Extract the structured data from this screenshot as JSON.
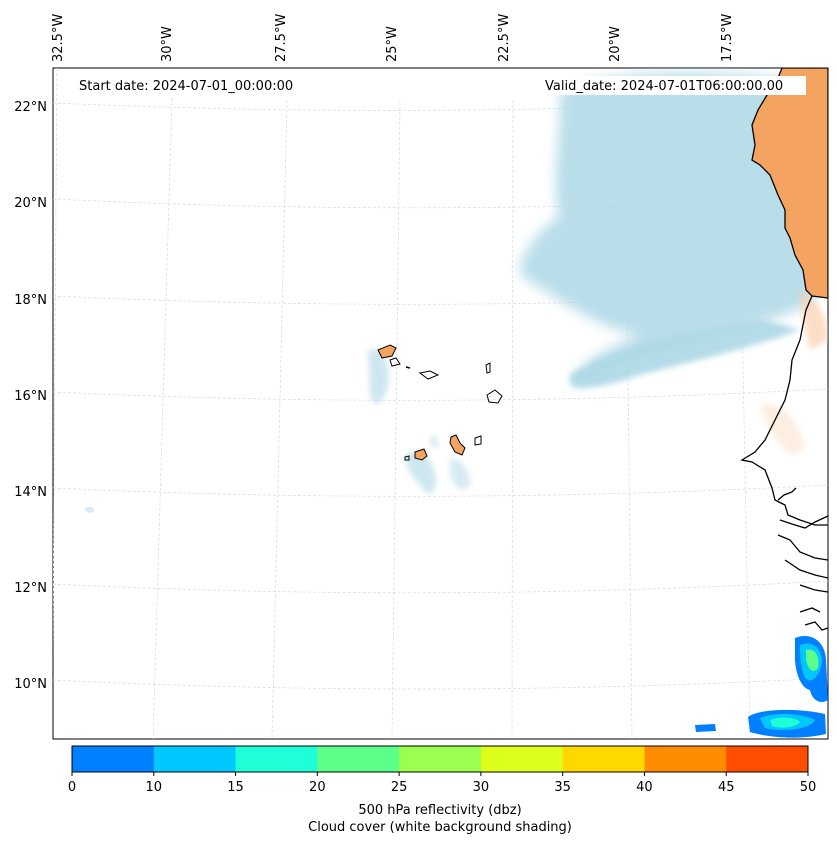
{
  "map": {
    "start_date": "Start date: 2024-07-01_00:00:00",
    "valid_date": "Valid_date: 2024-07-01T06:00:00.00",
    "lon_labels": [
      "32.5°W",
      "30°W",
      "27.5°W",
      "25°W",
      "22.5°W",
      "20°W",
      "17.5°W"
    ],
    "lat_labels": [
      "22°N",
      "20°N",
      "18°N",
      "16°N",
      "14°N",
      "12°N",
      "10°N"
    ],
    "land_color": "#f4a460",
    "cloud_color": "#add8e6",
    "gridlines": true
  },
  "colorbar": {
    "label": "500 hPa reflectivity (dbz)",
    "sublabel": "Cloud cover (white background shading)",
    "ticks": [
      "0",
      "10",
      "15",
      "20",
      "25",
      "30",
      "35",
      "40",
      "45",
      "50"
    ],
    "colors": [
      "#0080ff",
      "#00c8ff",
      "#1effd8",
      "#5cff8a",
      "#9aff50",
      "#dcff1c",
      "#ffd800",
      "#ff8c00",
      "#ff4e00"
    ]
  }
}
